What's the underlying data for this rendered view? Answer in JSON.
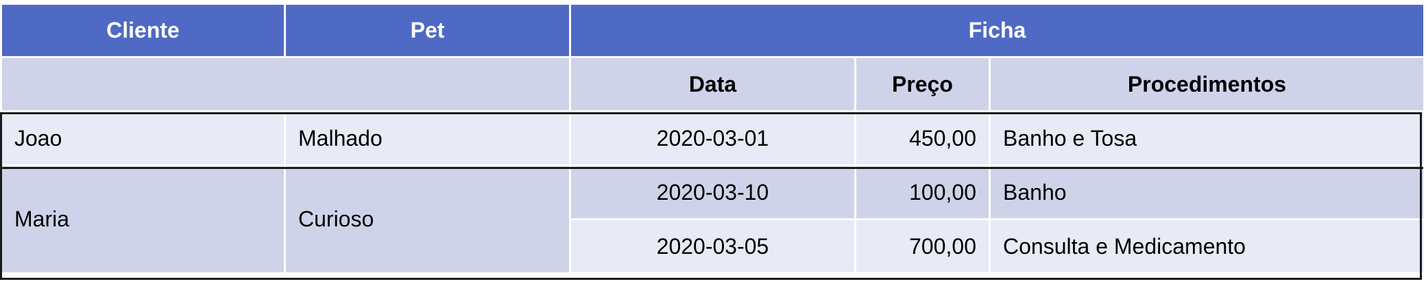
{
  "headers": {
    "cliente": "Cliente",
    "pet": "Pet",
    "ficha": "Ficha",
    "data": "Data",
    "preco": "Preço",
    "procedimentos": "Procedimentos"
  },
  "rows": [
    {
      "cliente": "Joao",
      "pet": "Malhado",
      "data": "2020-03-01",
      "preco": "450,00",
      "procedimentos": "Banho e Tosa"
    },
    {
      "cliente": "Maria",
      "pet": "Curioso",
      "data": "2020-03-10",
      "preco": "100,00",
      "procedimentos": "Banho"
    },
    {
      "data": "2020-03-05",
      "preco": "700,00",
      "procedimentos": "Consulta e Medicamento"
    }
  ],
  "colors": {
    "header": "#4f6ac4",
    "band_dark": "#cfd3e9",
    "band_light": "#e8eaf5",
    "border": "#1a1a1a"
  }
}
